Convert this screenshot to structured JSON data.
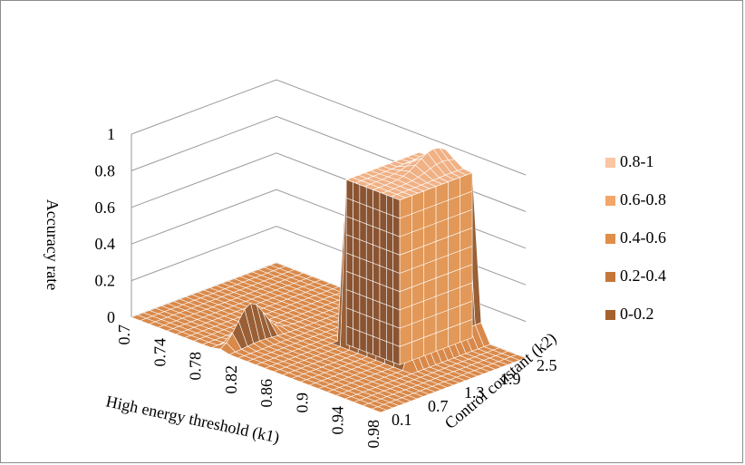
{
  "chart_data": {
    "type": "surface",
    "title": "",
    "zlabel": "Accuracy rate",
    "xlabel": "High energy threshold (k1)",
    "ylabel": "Control constant (k2)",
    "x_ticks": [
      "0.7",
      "0.74",
      "0.78",
      "0.82",
      "0.86",
      "0.9",
      "0.94",
      "0.98"
    ],
    "y_ticks": [
      "0.1",
      "0.7",
      "1.3",
      "1.9",
      "2.5"
    ],
    "z_ticks": [
      "0",
      "0.2",
      "0.4",
      "0.6",
      "0.8",
      "1"
    ],
    "zlim": [
      0,
      1
    ],
    "x_range": [
      0.7,
      0.98
    ],
    "y_range": [
      0.1,
      2.5
    ],
    "plateau": {
      "k1_range": [
        0.86,
        0.92
      ],
      "k2_range": [
        1.3,
        2.5
      ],
      "accuracy": 0.9,
      "peak_accuracy": 1.0
    },
    "minor_peak": {
      "k1": 0.8,
      "k2": 0.6,
      "accuracy": 0.2
    },
    "legend": {
      "position": "right",
      "entries": [
        {
          "label": "0.8-1",
          "color": "#f9c5a2"
        },
        {
          "label": "0.6-0.8",
          "color": "#f2a66a"
        },
        {
          "label": "0.4-0.6",
          "color": "#e08e48"
        },
        {
          "label": "0.2-0.4",
          "color": "#c4773a"
        },
        {
          "label": "0-0.2",
          "color": "#a5612e"
        }
      ]
    }
  }
}
